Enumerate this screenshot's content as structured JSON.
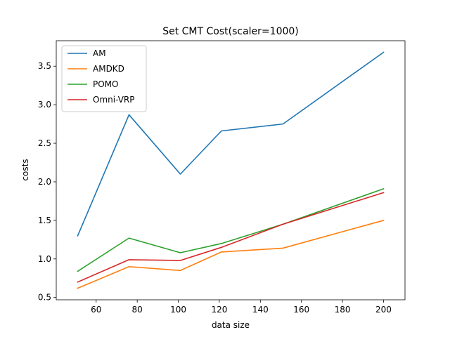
{
  "chart_data": {
    "type": "line",
    "title": "Set CMT Cost(scaler=1000)",
    "xlabel": "data size",
    "ylabel": "costs",
    "x": [
      51,
      76,
      101,
      121,
      151,
      200
    ],
    "xlim": [
      40.55,
      210.45
    ],
    "ylim": [
      0.47,
      3.83
    ],
    "xticks": [
      60,
      80,
      100,
      120,
      140,
      160,
      180,
      200
    ],
    "yticks": [
      0.5,
      1.0,
      1.5,
      2.0,
      2.5,
      3.0,
      3.5
    ],
    "grid": false,
    "legend": "top-left",
    "series": [
      {
        "name": "AM",
        "color": "#1f77b4",
        "values": [
          1.3,
          2.87,
          2.1,
          2.66,
          2.75,
          3.68
        ]
      },
      {
        "name": "AMDKD",
        "color": "#ff7f0e",
        "values": [
          0.62,
          0.9,
          0.85,
          1.09,
          1.14,
          1.5
        ]
      },
      {
        "name": "POMO",
        "color": "#2ca02c",
        "values": [
          0.84,
          1.27,
          1.08,
          1.2,
          1.45,
          1.91
        ]
      },
      {
        "name": "Omni-VRP",
        "color": "#d62728",
        "values": [
          0.7,
          0.99,
          0.98,
          1.15,
          1.45,
          1.86
        ]
      }
    ]
  }
}
